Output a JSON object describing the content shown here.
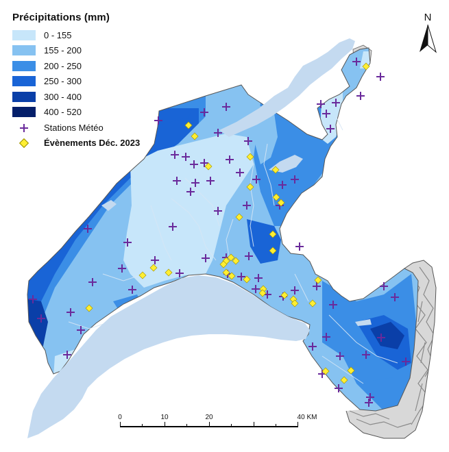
{
  "legend": {
    "title": "Précipitations (mm)",
    "classes": [
      {
        "label": "0 - 155",
        "color": "#c7e6fa"
      },
      {
        "label": "155 - 200",
        "color": "#86c2f1"
      },
      {
        "label": "200 - 250",
        "color": "#3b8ee6"
      },
      {
        "label": "250 - 300",
        "color": "#1964d6"
      },
      {
        "label": "300 - 400",
        "color": "#0a3fa8"
      },
      {
        "label": "400 - 520",
        "color": "#041f6a"
      }
    ],
    "stations_label": "Stations Météo",
    "events_label": "Évènements Déc. 2023"
  },
  "scale_bar": {
    "labels": [
      "0",
      "10",
      "20",
      "40 KM"
    ]
  },
  "north_arrow": {
    "label": "N"
  },
  "colors": {
    "lake": "#c4daf0",
    "station": "#6a2a9b",
    "event": "#ffee33",
    "relief": "#c8c8c8",
    "river": "#d6e6f5"
  }
}
